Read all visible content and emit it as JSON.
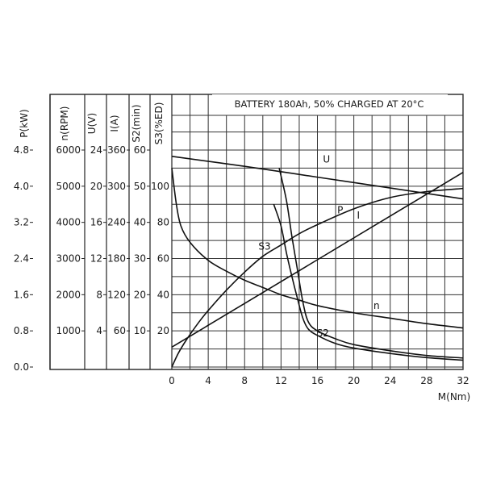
{
  "chart_data": {
    "type": "line",
    "title": "BATTERY 180Ah, 50% CHARGED AT 20°C",
    "xlabel": "M(Nm)",
    "x_ticks": [
      "0",
      "4",
      "8",
      "12",
      "16",
      "20",
      "24",
      "28",
      "32"
    ],
    "xlim": [
      0,
      32
    ],
    "grid": true,
    "axes": [
      {
        "key": "P",
        "label": "P(kW)",
        "ticks": [
          "0.0",
          "0.8",
          "1.6",
          "2.4",
          "3.2",
          "4.0",
          "4.8"
        ],
        "range": [
          0,
          4.8
        ]
      },
      {
        "key": "n",
        "label": "n(RPM)",
        "ticks": [
          "1000",
          "2000",
          "3000",
          "4000",
          "5000",
          "6000"
        ],
        "range": [
          0,
          6000
        ]
      },
      {
        "key": "U",
        "label": "U(V)",
        "ticks": [
          "4",
          "8",
          "12",
          "16",
          "20",
          "24"
        ],
        "range": [
          0,
          24
        ]
      },
      {
        "key": "I",
        "label": "I(A)",
        "ticks": [
          "60",
          "120",
          "180",
          "240",
          "300",
          "360"
        ],
        "range": [
          0,
          360
        ]
      },
      {
        "key": "S2",
        "label": "S2(min)",
        "ticks": [
          "10",
          "20",
          "30",
          "40",
          "50",
          "60"
        ],
        "range": [
          0,
          60
        ]
      },
      {
        "key": "S3",
        "label": "S3(%ED)",
        "ticks": [
          "20",
          "40",
          "60",
          "80",
          "100"
        ],
        "range": [
          0,
          120
        ]
      }
    ],
    "series": [
      {
        "name": "U",
        "axis": "U",
        "x": [
          0,
          8,
          16,
          24,
          32
        ],
        "y": [
          23.3,
          22.2,
          21.0,
          19.8,
          18.6
        ]
      },
      {
        "name": "P",
        "axis": "P",
        "x": [
          0,
          0.7,
          1.6,
          3,
          4,
          6,
          8,
          10,
          12,
          14,
          16,
          20,
          24,
          28,
          32
        ],
        "y": [
          0,
          0.3,
          0.6,
          1.0,
          1.25,
          1.7,
          2.1,
          2.45,
          2.7,
          2.95,
          3.15,
          3.5,
          3.75,
          3.88,
          3.95
        ]
      },
      {
        "name": "I",
        "axis": "I",
        "x": [
          0,
          32
        ],
        "y": [
          33,
          323
        ]
      },
      {
        "name": "n",
        "axis": "n",
        "x": [
          0,
          0.5,
          1,
          2,
          4,
          6,
          8,
          10,
          12,
          14,
          16,
          20,
          24,
          28,
          32
        ],
        "y": [
          5500,
          4500,
          3900,
          3450,
          2950,
          2650,
          2400,
          2200,
          2000,
          1850,
          1700,
          1500,
          1350,
          1200,
          1080
        ]
      },
      {
        "name": "S2",
        "axis": "S2",
        "x": [
          11.8,
          12.6,
          13.2,
          13.8,
          14.4,
          15.0,
          16,
          18,
          20,
          24,
          28,
          32
        ],
        "y": [
          55,
          46,
          36,
          27,
          18,
          12.5,
          10,
          7.8,
          6.2,
          4.5,
          3.2,
          2.5
        ]
      },
      {
        "name": "S3",
        "axis": "S3",
        "x": [
          11.2,
          12.0,
          12.6,
          13.2,
          13.8,
          14.4,
          15.0,
          16,
          18,
          20,
          24,
          28,
          32
        ],
        "y": [
          90,
          78,
          63,
          50,
          38,
          27,
          21,
          17.5,
          13,
          10.5,
          7.5,
          5.2,
          3.8
        ]
      }
    ],
    "curve_labels": [
      {
        "series": "U",
        "text": "U",
        "x": 17,
        "y": 22.6,
        "axis": "U"
      },
      {
        "series": "P",
        "text": "P",
        "x": 18.5,
        "y": 3.4,
        "axis": "P"
      },
      {
        "series": "I",
        "text": "I",
        "x": 20.5,
        "y": 246,
        "axis": "I"
      },
      {
        "series": "n",
        "text": "n",
        "x": 22.5,
        "y": 1610,
        "axis": "n"
      },
      {
        "series": "S2",
        "text": "S2",
        "x": 16.6,
        "y": 8.5,
        "axis": "S2"
      },
      {
        "series": "S3",
        "text": "S3",
        "x": 10.2,
        "y": 65,
        "axis": "S3"
      }
    ]
  }
}
